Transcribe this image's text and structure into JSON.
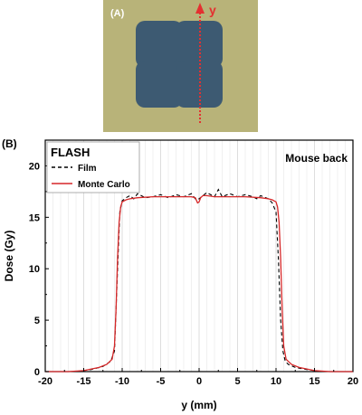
{
  "panel_a": {
    "label": "(A)",
    "axis_label": "y",
    "colors": {
      "film": "#b8b379",
      "field": "#3d5a72",
      "arrow": "#e43030"
    }
  },
  "panel_b": {
    "label": "(B)",
    "legend_title": "FLASH",
    "annotation": "Mouse back"
  },
  "chart_data": {
    "type": "line",
    "xlabel": "y (mm)",
    "ylabel": "Dose (Gy)",
    "xlim": [
      -20,
      20
    ],
    "ylim": [
      0,
      22.5
    ],
    "x_ticks": [
      -20,
      -15,
      -10,
      -5,
      0,
      5,
      10,
      15,
      20
    ],
    "y_ticks": [
      0,
      5,
      10,
      15,
      20
    ],
    "vertical_grid": true,
    "legend_position": "top-left",
    "series": [
      {
        "name": "Film",
        "style": "dashed",
        "color": "#000000",
        "x": [
          -20,
          -16,
          -14,
          -12.5,
          -11.5,
          -11.0,
          -10.8,
          -10.5,
          -10.3,
          -10.0,
          -9.5,
          -9.0,
          -8.5,
          -8.0,
          -7.0,
          -6.0,
          -5.0,
          -4.0,
          -3.0,
          -2.0,
          -1.0,
          -0.5,
          0,
          0.5,
          1.0,
          2.0,
          2.5,
          3.0,
          4.0,
          5.0,
          6.0,
          7.0,
          7.5,
          8.0,
          9.0,
          9.5,
          10.0,
          10.3,
          10.6,
          10.9,
          11.2,
          11.6,
          12.5,
          14.0,
          16.0,
          20
        ],
        "y": [
          0,
          0,
          0.2,
          0.5,
          1.0,
          2.0,
          6.0,
          12.0,
          15.5,
          16.6,
          16.9,
          17.1,
          16.8,
          17.3,
          16.9,
          17.0,
          17.2,
          16.9,
          17.2,
          17.0,
          17.3,
          16.8,
          16.8,
          17.1,
          17.4,
          17.0,
          17.7,
          17.0,
          17.3,
          17.0,
          17.2,
          17.0,
          16.8,
          17.1,
          16.8,
          16.4,
          15.5,
          11.0,
          5.0,
          2.0,
          1.0,
          0.7,
          0.4,
          0.2,
          0,
          0
        ]
      },
      {
        "name": "Monte Carlo",
        "style": "solid",
        "color": "#d62728",
        "x": [
          -20,
          -17,
          -15,
          -13,
          -12,
          -11.3,
          -11.0,
          -10.8,
          -10.6,
          -10.4,
          -10.2,
          -10.0,
          -9.5,
          -9.0,
          -8.0,
          -6.0,
          -4.0,
          -2.0,
          -1.0,
          -0.5,
          -0.2,
          0,
          0.2,
          0.5,
          1.0,
          2.0,
          4.0,
          6.0,
          8.0,
          9.0,
          9.5,
          10.0,
          10.2,
          10.4,
          10.6,
          10.8,
          11.0,
          11.3,
          12.0,
          13.0,
          15.0,
          17.0,
          20
        ],
        "y": [
          0,
          0,
          0.1,
          0.4,
          0.7,
          1.2,
          2.5,
          6.0,
          11.0,
          14.5,
          16.0,
          16.5,
          16.7,
          16.8,
          16.9,
          17.0,
          17.0,
          17.0,
          17.0,
          16.9,
          16.4,
          16.5,
          16.9,
          17.1,
          17.1,
          17.0,
          17.0,
          17.0,
          16.9,
          16.8,
          16.7,
          16.5,
          16.0,
          14.5,
          11.0,
          6.0,
          2.5,
          1.2,
          0.7,
          0.4,
          0.1,
          0,
          0
        ]
      }
    ]
  }
}
